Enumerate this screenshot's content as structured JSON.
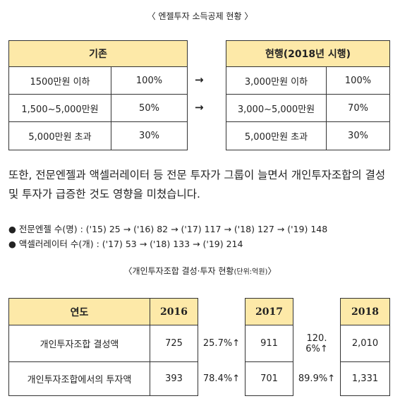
{
  "title": "〈 엔젤투자 소득공제 현황 〉",
  "before_table": {
    "header": "기존",
    "rows": [
      [
        "1500만원 이하",
        "100%"
      ],
      [
        "1,500~5,000만원",
        "50%"
      ],
      [
        "5,000만원 초과",
        "30%"
      ]
    ]
  },
  "arrows": [
    "→",
    "→"
  ],
  "after_table": {
    "header": "현행(2018년 시행)",
    "rows": [
      [
        "3,000만원 이하",
        "100%"
      ],
      [
        "3,000~5,000만원",
        "70%"
      ],
      [
        "5,000만원 초과",
        "30%"
      ]
    ]
  },
  "paragraph": {
    "lines": [
      "또한, 전문엔젤과 액셀러레이터 등 전문 투자가 그룹이 늘면서 개인투자조합의 결성",
      "및 투자가 급증한 것도 영향을 미쳤습니다."
    ]
  },
  "bullets": [
    "● 전문엔젤 수(명) : ('15) 25 → ('16) 82 → ('17) 117 → ('18) 127 → ('19) 148",
    "● 액셀러레이터 수(개) : ('17) 53 → ('18) 133 → ('19) 214"
  ],
  "table2_title": {
    "text": "〈개인투자조합 결성·투자 현황",
    "unit": "(단위:억원)",
    "close": "〉"
  },
  "table2": {
    "header": {
      "label": "연도",
      "years": [
        "2016",
        "2017",
        "2018"
      ]
    },
    "rows": [
      {
        "label": "개인투자조합 결성액",
        "values": [
          "725",
          "911",
          "2,010"
        ],
        "growth": [
          "25.7%↑",
          "120.6%↑"
        ]
      },
      {
        "label": "개인투자조합에서의 투자액",
        "values": [
          "393",
          "701",
          "1,331"
        ],
        "growth": [
          "78.4%↑",
          "89.9%↑"
        ]
      }
    ]
  }
}
